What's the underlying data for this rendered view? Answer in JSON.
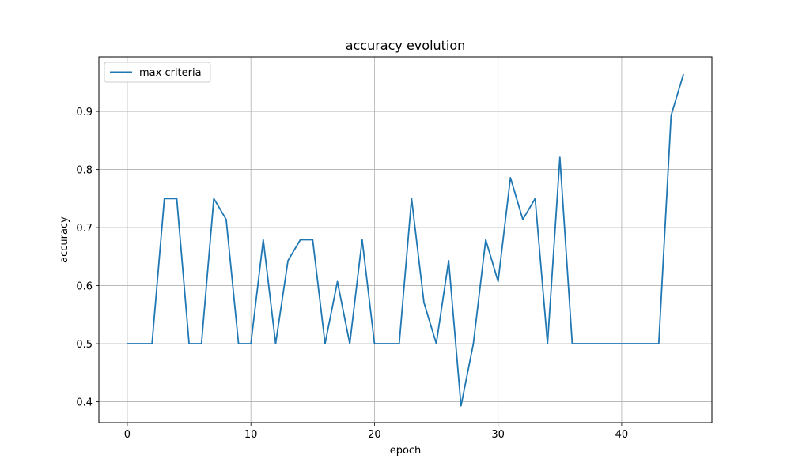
{
  "chart_data": {
    "type": "line",
    "title": "accuracy evolution",
    "xlabel": "epoch",
    "ylabel": "accuracy",
    "xlim": [
      -2.3,
      47.3
    ],
    "ylim": [
      0.364,
      0.994
    ],
    "xticks": [
      0,
      10,
      20,
      30,
      40
    ],
    "yticks": [
      0.4,
      0.5,
      0.6,
      0.7,
      0.8,
      0.9
    ],
    "grid": true,
    "legend_position": "top-left",
    "series": [
      {
        "name": "max criteria",
        "color": "#1f77b4",
        "x": [
          0,
          1,
          2,
          3,
          4,
          5,
          6,
          7,
          8,
          9,
          10,
          11,
          12,
          13,
          14,
          15,
          16,
          17,
          18,
          19,
          20,
          21,
          22,
          23,
          24,
          25,
          26,
          27,
          28,
          29,
          30,
          31,
          32,
          33,
          34,
          35,
          36,
          37,
          38,
          39,
          40,
          41,
          42,
          43,
          44,
          45
        ],
        "values": [
          0.5,
          0.5,
          0.5,
          0.75,
          0.75,
          0.5,
          0.5,
          0.75,
          0.714,
          0.5,
          0.5,
          0.679,
          0.5,
          0.643,
          0.679,
          0.679,
          0.5,
          0.607,
          0.5,
          0.679,
          0.5,
          0.5,
          0.5,
          0.75,
          0.571,
          0.5,
          0.643,
          0.393,
          0.5,
          0.679,
          0.607,
          0.786,
          0.714,
          0.75,
          0.5,
          0.821,
          0.5,
          0.5,
          0.5,
          0.5,
          0.5,
          0.5,
          0.5,
          0.5,
          0.893,
          0.964
        ]
      }
    ]
  }
}
